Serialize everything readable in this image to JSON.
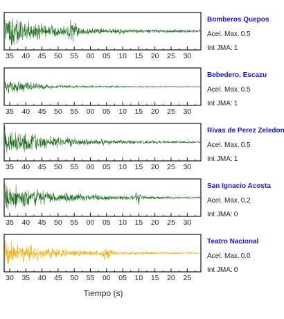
{
  "chart_data": {
    "type": "line",
    "xlabel": "Tiempo (s)",
    "stations": [
      {
        "name": "Bomberos Quepos",
        "accel_label": "Acel. Max.",
        "accel_value": "0.5",
        "int_label": "Int JMA:",
        "int_value": "1",
        "color": "#1a6b1a",
        "ticks": [
          "35",
          "40",
          "45",
          "50",
          "55",
          "00",
          "05",
          "10",
          "15",
          "20",
          "25",
          "30"
        ],
        "waveform": {
          "base": 0.45,
          "peak": 1.0,
          "onset": 0.0,
          "decay": 0.24,
          "bursts": [
            [
              0.35,
              0.7
            ]
          ]
        }
      },
      {
        "name": "Bebedero, Escazu",
        "accel_label": "Acel. Max.",
        "accel_value": "0.5",
        "int_label": "Int JMA:",
        "int_value": "1",
        "color": "#1a6b1a",
        "ticks": [
          "35",
          "40",
          "45",
          "50",
          "55",
          "00",
          "05",
          "10",
          "15",
          "20",
          "25",
          "30"
        ],
        "waveform": {
          "base": 0.12,
          "peak": 0.55,
          "onset": 0.0,
          "decay": 0.18,
          "bursts": []
        }
      },
      {
        "name": "Rivas de Perez Zeledon",
        "accel_label": "Acel. Max.",
        "accel_value": "0.5",
        "int_label": "Int JMA:",
        "int_value": "1",
        "color": "#1a6b1a",
        "ticks": [
          "35",
          "40",
          "45",
          "50",
          "55",
          "00",
          "05",
          "10",
          "15",
          "20",
          "25",
          "30"
        ],
        "waveform": {
          "base": 0.15,
          "peak": 0.9,
          "onset": 0.0,
          "decay": 0.3,
          "bursts": []
        }
      },
      {
        "name": "San Ignacio Acosta",
        "accel_label": "Acel. Max.",
        "accel_value": "0.2",
        "int_label": "Int JMA:",
        "int_value": "0",
        "color": "#1a6b1a",
        "ticks": [
          "35",
          "40",
          "45",
          "50",
          "55",
          "00",
          "05",
          "10",
          "15",
          "20",
          "25",
          "30"
        ],
        "waveform": {
          "base": 0.18,
          "peak": 0.95,
          "onset": 0.0,
          "decay": 0.28,
          "bursts": [
            [
              0.68,
              0.35
            ]
          ]
        }
      },
      {
        "name": "Teatro Nacional",
        "accel_label": "Acel. Max.",
        "accel_value": "0.0",
        "int_label": "Int JMA:",
        "int_value": "0",
        "color": "#f5a800",
        "ticks": [
          "30",
          "35",
          "40",
          "45",
          "50",
          "55",
          "00",
          "05",
          "10",
          "15",
          "20",
          "25"
        ],
        "waveform": {
          "base": 0.22,
          "peak": 0.8,
          "onset": 0.0,
          "decay": 0.25,
          "bursts": [
            [
              0.52,
              0.45
            ]
          ]
        }
      }
    ]
  }
}
